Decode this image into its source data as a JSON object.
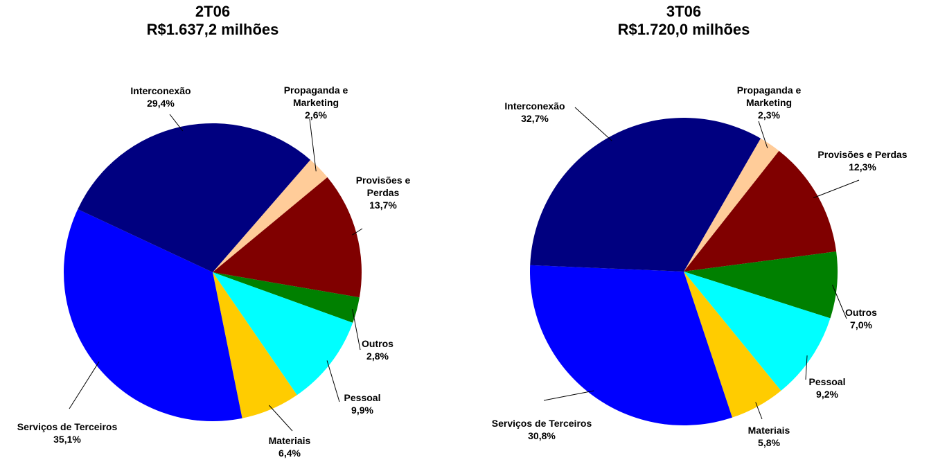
{
  "chart_data": [
    {
      "type": "pie",
      "title": "2T06",
      "subtitle": "R$1.637,2 milhões",
      "categories": [
        "Propaganda e Marketing",
        "Provisões e Perdas",
        "Outros",
        "Pessoal",
        "Materiais",
        "Serviços de Terceiros",
        "Interconexão"
      ],
      "values": [
        2.6,
        13.7,
        2.8,
        9.9,
        6.4,
        35.1,
        29.4
      ],
      "value_labels": [
        "2,6%",
        "13,7%",
        "2,8%",
        "9,9%",
        "6,4%",
        "35,1%",
        "29,4%"
      ],
      "colors": [
        "#ffcc99",
        "#800000",
        "#008000",
        "#00ffff",
        "#ffcc00",
        "#0000ff",
        "#000080"
      ]
    },
    {
      "type": "pie",
      "title": "3T06",
      "subtitle": "R$1.720,0 milhões",
      "categories": [
        "Propaganda e Marketing",
        "Provisões e Perdas",
        "Outros",
        "Pessoal",
        "Materiais",
        "Serviços de Terceiros",
        "Interconexão"
      ],
      "values": [
        2.3,
        12.3,
        7.0,
        9.2,
        5.8,
        30.8,
        32.7
      ],
      "value_labels": [
        "2,3%",
        "12,3%",
        "7,0%",
        "9,2%",
        "5,8%",
        "30,8%",
        "32,7%"
      ],
      "colors": [
        "#ffcc99",
        "#800000",
        "#008000",
        "#00ffff",
        "#ffcc00",
        "#0000ff",
        "#000080"
      ]
    }
  ]
}
